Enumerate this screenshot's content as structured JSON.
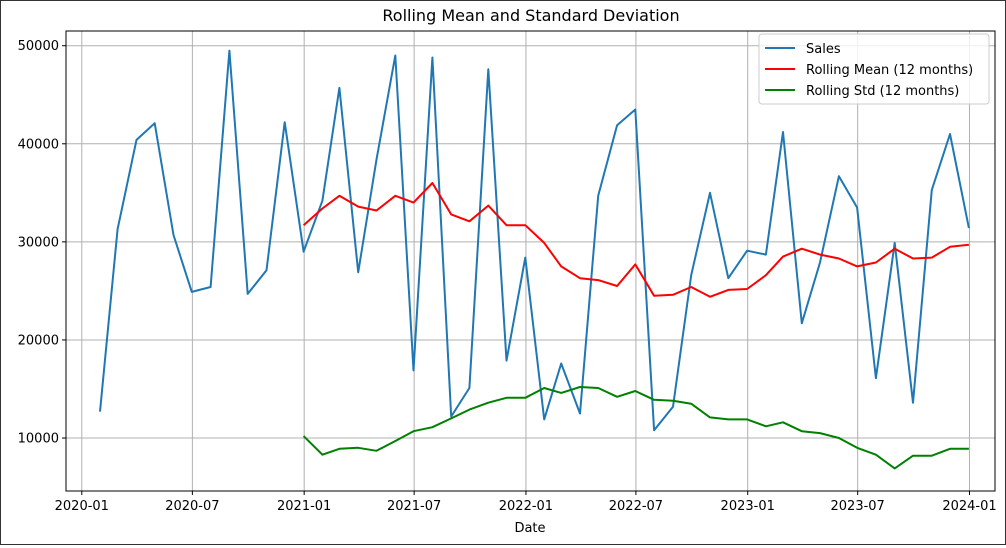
{
  "chart_data": {
    "type": "line",
    "title": "Rolling Mean and Standard Deviation",
    "xlabel": "Date",
    "ylabel": "",
    "grid": true,
    "legend_placement": "top-right",
    "x_ticks": [
      "2020-01",
      "2020-07",
      "2021-01",
      "2021-07",
      "2022-01",
      "2022-07",
      "2023-01",
      "2023-07",
      "2024-01"
    ],
    "y_ticks": [
      10000,
      20000,
      30000,
      40000,
      50000
    ],
    "xlim": [
      "2019-12-06",
      "2024-02-12"
    ],
    "ylim": [
      4600,
      51500
    ],
    "x": [
      "2020-01-31",
      "2020-02-29",
      "2020-03-31",
      "2020-04-30",
      "2020-05-31",
      "2020-06-30",
      "2020-07-31",
      "2020-08-31",
      "2020-09-30",
      "2020-10-31",
      "2020-11-30",
      "2020-12-31",
      "2021-01-31",
      "2021-02-28",
      "2021-03-31",
      "2021-04-30",
      "2021-05-31",
      "2021-06-30",
      "2021-07-31",
      "2021-08-31",
      "2021-09-30",
      "2021-10-31",
      "2021-11-30",
      "2021-12-31",
      "2022-01-31",
      "2022-02-28",
      "2022-03-31",
      "2022-04-30",
      "2022-05-31",
      "2022-06-30",
      "2022-07-31",
      "2022-08-31",
      "2022-09-30",
      "2022-10-31",
      "2022-11-30",
      "2022-12-31",
      "2023-01-31",
      "2023-02-28",
      "2023-03-31",
      "2023-04-30",
      "2023-05-31",
      "2023-06-30",
      "2023-07-31",
      "2023-08-31",
      "2023-09-30",
      "2023-10-31",
      "2023-11-30",
      "2023-12-31"
    ],
    "series": [
      {
        "name": "Sales",
        "color": "#1f77b4",
        "values": [
          12700,
          31300,
          40400,
          42100,
          30700,
          24900,
          25400,
          49500,
          24700,
          27100,
          42200,
          29000,
          34200,
          45700,
          26900,
          38400,
          49000,
          16900,
          48800,
          12200,
          15100,
          47600,
          17900,
          28400,
          11900,
          17600,
          12500,
          34700,
          41900,
          43500,
          10800,
          13200,
          26600,
          35000,
          26300,
          29100,
          28700,
          41200,
          21700,
          27900,
          36700,
          33500,
          16100,
          29900,
          13600,
          35300,
          41000,
          31400
        ]
      },
      {
        "name": "Rolling Mean (12 months)",
        "color": "#ff0000",
        "values": [
          null,
          null,
          null,
          null,
          null,
          null,
          null,
          null,
          null,
          null,
          null,
          31700,
          33400,
          34700,
          33600,
          33200,
          34700,
          34000,
          36000,
          32800,
          32100,
          33700,
          31700,
          31700,
          29900,
          27500,
          26300,
          26100,
          25500,
          27700,
          24500,
          24600,
          25400,
          24400,
          25100,
          25200,
          26600,
          28500,
          29300,
          28700,
          28300,
          27500,
          27900,
          29300,
          28300,
          28400,
          29500,
          29700
        ]
      },
      {
        "name": "Rolling Std (12 months)",
        "color": "#008000",
        "values": [
          null,
          null,
          null,
          null,
          null,
          null,
          null,
          null,
          null,
          null,
          null,
          10200,
          8300,
          8900,
          9000,
          8700,
          9700,
          10700,
          11100,
          12000,
          12900,
          13600,
          14100,
          14100,
          15100,
          14600,
          15200,
          15100,
          14200,
          14800,
          13900,
          13800,
          13500,
          12100,
          11900,
          11900,
          11200,
          11600,
          10700,
          10500,
          10000,
          9000,
          8300,
          6900,
          8200,
          8200,
          8900,
          8900
        ]
      }
    ]
  }
}
